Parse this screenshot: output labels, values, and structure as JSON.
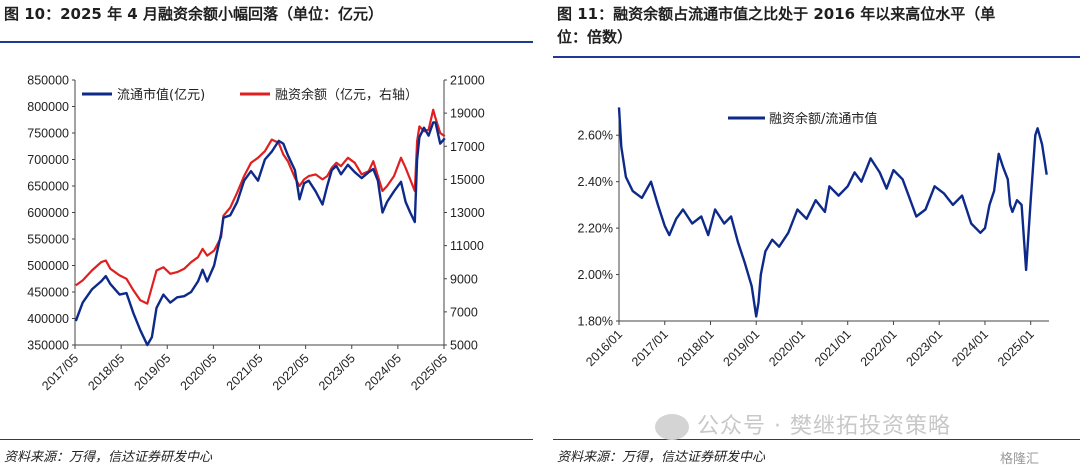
{
  "left": {
    "title": "图 10：2025 年 4 月融资余额小幅回落（单位：亿元）",
    "source": "资料来源：万得，信达证券研发中心"
  },
  "right": {
    "title": "图 11：融资余额占流通市值之比处于 2016 年以来高位水平（单位：倍数）",
    "title_line1": "图 11：融资余额占流通市值之比处于 2016 年以来高位水平（单",
    "title_line2": "位：倍数）",
    "source": "资料来源：万得，信达证券研发中心"
  },
  "watermark": "公众号 · 樊继拓投资策略",
  "badge": "格隆汇",
  "colors": {
    "blue": "#0d2a8a",
    "red": "#e02020",
    "rule": "#1f3a93"
  },
  "chart_data": [
    {
      "type": "line",
      "title": "图 10：2025 年 4 月融资余额小幅回落（单位：亿元）",
      "x_ticks": [
        "2017/05",
        "2018/05",
        "2019/05",
        "2020/05",
        "2021/05",
        "2022/05",
        "2023/05",
        "2024/05",
        "2025/05"
      ],
      "x_range": [
        "2017/05",
        "2025/05"
      ],
      "y_left_ticks": [
        "350000",
        "400000",
        "450000",
        "500000",
        "550000",
        "600000",
        "650000",
        "700000",
        "750000",
        "800000",
        "850000"
      ],
      "y_left_range": [
        350000,
        850000
      ],
      "y_right_ticks": [
        "5000",
        "7000",
        "9000",
        "11000",
        "13000",
        "15000",
        "17000",
        "19000",
        "21000"
      ],
      "y_right_range": [
        5000,
        21000
      ],
      "legend_position": "top",
      "grid": false,
      "series": [
        {
          "name": "流通市值(亿元)",
          "axis": "left",
          "color": "#0d2a8a",
          "x": [
            2017.35,
            2017.5,
            2017.7,
            2017.9,
            2018.0,
            2018.1,
            2018.3,
            2018.45,
            2018.6,
            2018.75,
            2018.9,
            2019.0,
            2019.1,
            2019.25,
            2019.4,
            2019.55,
            2019.7,
            2019.85,
            2020.0,
            2020.1,
            2020.2,
            2020.35,
            2020.5,
            2020.55,
            2020.7,
            2020.85,
            2021.0,
            2021.15,
            2021.3,
            2021.45,
            2021.6,
            2021.75,
            2021.85,
            2021.95,
            2022.1,
            2022.2,
            2022.3,
            2022.4,
            2022.55,
            2022.7,
            2022.8,
            2022.9,
            2023.0,
            2023.1,
            2023.25,
            2023.4,
            2023.55,
            2023.7,
            2023.8,
            2023.9,
            2024.0,
            2024.1,
            2024.25,
            2024.4,
            2024.5,
            2024.6,
            2024.7,
            2024.75,
            2024.8,
            2024.9,
            2025.0,
            2025.1,
            2025.15,
            2025.25,
            2025.35
          ],
          "values": [
            395000,
            430000,
            455000,
            470000,
            480000,
            465000,
            445000,
            448000,
            410000,
            378000,
            350000,
            365000,
            420000,
            445000,
            430000,
            440000,
            442000,
            450000,
            470000,
            492000,
            470000,
            500000,
            560000,
            590000,
            595000,
            620000,
            660000,
            678000,
            660000,
            700000,
            715000,
            735000,
            730000,
            708000,
            680000,
            625000,
            655000,
            660000,
            640000,
            615000,
            650000,
            680000,
            688000,
            672000,
            690000,
            676000,
            665000,
            676000,
            682000,
            660000,
            600000,
            620000,
            640000,
            658000,
            620000,
            600000,
            582000,
            700000,
            742000,
            760000,
            745000,
            770000,
            770000,
            730000,
            740000
          ]
        },
        {
          "name": "融资余额（亿元，右轴）",
          "axis": "right",
          "color": "#e02020",
          "x": [
            2017.35,
            2017.5,
            2017.7,
            2017.9,
            2018.0,
            2018.1,
            2018.3,
            2018.45,
            2018.6,
            2018.75,
            2018.9,
            2019.0,
            2019.1,
            2019.25,
            2019.4,
            2019.55,
            2019.7,
            2019.85,
            2020.0,
            2020.1,
            2020.2,
            2020.35,
            2020.5,
            2020.55,
            2020.7,
            2020.85,
            2021.0,
            2021.15,
            2021.3,
            2021.45,
            2021.6,
            2021.75,
            2021.85,
            2021.95,
            2022.1,
            2022.2,
            2022.3,
            2022.4,
            2022.55,
            2022.7,
            2022.8,
            2022.9,
            2023.0,
            2023.1,
            2023.25,
            2023.4,
            2023.55,
            2023.7,
            2023.8,
            2023.9,
            2024.0,
            2024.1,
            2024.25,
            2024.4,
            2024.5,
            2024.6,
            2024.7,
            2024.75,
            2024.8,
            2024.9,
            2025.0,
            2025.1,
            2025.15,
            2025.25,
            2025.35
          ],
          "values": [
            8600,
            8900,
            9500,
            10000,
            10100,
            9600,
            9200,
            9000,
            8300,
            7700,
            7500,
            8500,
            9500,
            9700,
            9300,
            9400,
            9600,
            10000,
            10300,
            10800,
            10400,
            10700,
            11500,
            12800,
            13300,
            14200,
            15200,
            16000,
            16300,
            16700,
            17400,
            17200,
            16500,
            16100,
            15100,
            14600,
            15000,
            15200,
            15300,
            15000,
            15200,
            15700,
            16000,
            15800,
            16300,
            16000,
            15300,
            15500,
            16100,
            15200,
            14300,
            14600,
            15200,
            16300,
            15700,
            15000,
            14300,
            17300,
            18200,
            17900,
            18000,
            19200,
            18700,
            17800,
            17600
          ]
        }
      ]
    },
    {
      "type": "line",
      "title": "图 11：融资余额占流通市值之比处于 2016 年以来高位水平（单位：倍数）",
      "x_ticks": [
        "2016/01",
        "2017/01",
        "2018/01",
        "2019/01",
        "2020/01",
        "2021/01",
        "2022/01",
        "2023/01",
        "2024/01",
        "2025/01"
      ],
      "x_range": [
        "2016/01",
        "2025/01"
      ],
      "y_ticks": [
        "1.80%",
        "2.00%",
        "2.20%",
        "2.40%",
        "2.60%"
      ],
      "y_range": [
        1.8,
        2.7
      ],
      "legend_position": "top",
      "grid": false,
      "series": [
        {
          "name": "融资余额/流通市值",
          "color": "#0d2a8a",
          "x": [
            2016.0,
            2016.05,
            2016.15,
            2016.3,
            2016.5,
            2016.7,
            2016.85,
            2017.0,
            2017.1,
            2017.25,
            2017.4,
            2017.6,
            2017.8,
            2017.95,
            2018.1,
            2018.3,
            2018.45,
            2018.6,
            2018.75,
            2018.9,
            2019.0,
            2019.05,
            2019.1,
            2019.2,
            2019.35,
            2019.5,
            2019.7,
            2019.9,
            2020.1,
            2020.3,
            2020.5,
            2020.6,
            2020.8,
            2021.0,
            2021.15,
            2021.3,
            2021.5,
            2021.7,
            2021.85,
            2022.0,
            2022.2,
            2022.35,
            2022.5,
            2022.7,
            2022.9,
            2023.1,
            2023.3,
            2023.5,
            2023.7,
            2023.9,
            2024.0,
            2024.1,
            2024.2,
            2024.3,
            2024.4,
            2024.5,
            2024.55,
            2024.6,
            2024.7,
            2024.8,
            2024.9,
            2025.0,
            2025.1,
            2025.15,
            2025.25,
            2025.35
          ],
          "values": [
            2.72,
            2.55,
            2.42,
            2.36,
            2.33,
            2.4,
            2.3,
            2.21,
            2.17,
            2.24,
            2.28,
            2.22,
            2.25,
            2.17,
            2.28,
            2.22,
            2.25,
            2.14,
            2.05,
            1.95,
            1.82,
            1.88,
            2.0,
            2.1,
            2.15,
            2.12,
            2.18,
            2.28,
            2.24,
            2.32,
            2.27,
            2.38,
            2.34,
            2.38,
            2.44,
            2.4,
            2.5,
            2.44,
            2.37,
            2.45,
            2.41,
            2.33,
            2.25,
            2.28,
            2.38,
            2.35,
            2.3,
            2.34,
            2.22,
            2.18,
            2.2,
            2.3,
            2.36,
            2.52,
            2.46,
            2.41,
            2.3,
            2.27,
            2.32,
            2.3,
            2.02,
            2.32,
            2.6,
            2.63,
            2.56,
            2.43
          ]
        }
      ]
    }
  ]
}
